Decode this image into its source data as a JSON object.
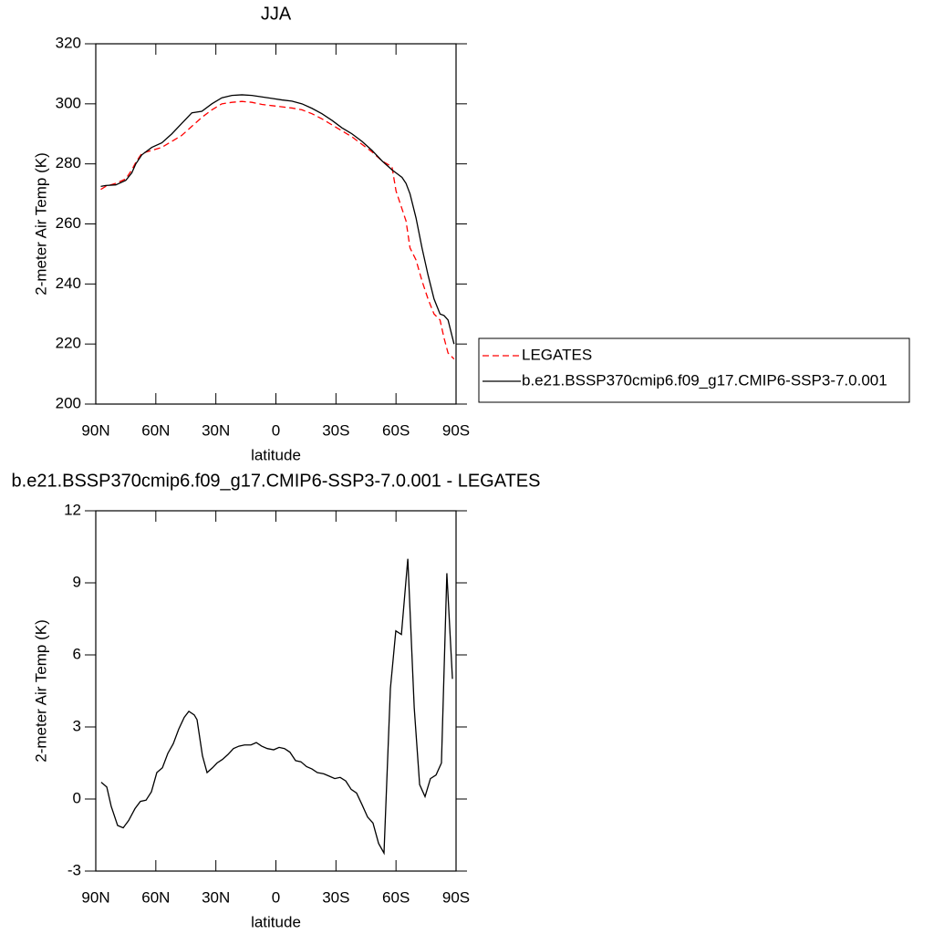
{
  "chart_data": [
    {
      "type": "line",
      "title": "JJA",
      "x_label": "latitude",
      "y_label": "2-meter Air Temp (K)",
      "x": [
        87.5,
        85,
        80,
        75,
        72,
        70,
        67,
        62,
        57,
        52,
        47,
        42,
        37,
        32,
        27,
        22,
        17,
        12,
        7,
        2,
        -3,
        -8,
        -13,
        -18,
        -23,
        -28,
        -33,
        -38,
        -43,
        -48,
        -53,
        -58,
        -60,
        -63,
        -65,
        -67,
        -70,
        -73,
        -76,
        -79,
        -82,
        -84,
        -86,
        -89
      ],
      "series": [
        {
          "name": "LEGATES",
          "color": "#ff0000",
          "dashed": true,
          "values": [
            271.5,
            272.5,
            273.5,
            275,
            278,
            280.5,
            283.5,
            284.5,
            285.5,
            287.5,
            289.5,
            292.5,
            295.5,
            298,
            300,
            300.5,
            300.8,
            300.5,
            299.8,
            299.4,
            299,
            298.6,
            298,
            296.7,
            295,
            293,
            291,
            289,
            286.5,
            284,
            281,
            279,
            271,
            265,
            261,
            252,
            248,
            241,
            235,
            230,
            228,
            222,
            217,
            215
          ]
        },
        {
          "name": "b.e21.BSSP370cmip6.f09_g17.CMIP6-SSP3-7.0.001",
          "color": "#000000",
          "dashed": false,
          "values": [
            272.5,
            272.8,
            273,
            274.5,
            277,
            280,
            283,
            285.5,
            287,
            290,
            293.5,
            297,
            297.5,
            300,
            302,
            302.8,
            303,
            302.8,
            302.3,
            301.8,
            301.3,
            300.9,
            300,
            298.5,
            296.7,
            294.5,
            292,
            290,
            287.5,
            284.5,
            281,
            278,
            277,
            275.5,
            273.5,
            270,
            262,
            252,
            243,
            235,
            230,
            229.5,
            228,
            220
          ]
        }
      ],
      "xlim": [
        90,
        -90
      ],
      "xticks": [
        {
          "value": 90,
          "label": "90N"
        },
        {
          "value": 60,
          "label": "60N"
        },
        {
          "value": 30,
          "label": "30N"
        },
        0,
        {
          "value": -30,
          "label": "30S"
        },
        {
          "value": -60,
          "label": "60S"
        },
        {
          "value": -90,
          "label": "90S"
        }
      ],
      "ylim": [
        200,
        320
      ],
      "yticks": [
        200,
        220,
        240,
        260,
        280,
        300,
        320
      ],
      "legend": "right"
    },
    {
      "type": "line",
      "title": "b.e21.BSSP370cmip6.f09_g17.CMIP6-SSP3-7.0.001 - LEGATES",
      "x_label": "latitude",
      "y_label": "2-meter Air Temp (K)",
      "x": [
        87.3,
        84.5,
        82.3,
        79.1,
        76.3,
        73.6,
        70.4,
        67.7,
        64.9,
        62.2,
        59.5,
        56.7,
        54.0,
        51.3,
        48.6,
        45.8,
        43.5,
        40.8,
        39.4,
        36.7,
        34.4,
        31.7,
        29.4,
        26.7,
        24.0,
        21.2,
        18.5,
        15.7,
        12.5,
        9.8,
        7.1,
        4.3,
        1.1,
        -1.6,
        -4.3,
        -7.0,
        -9.8,
        -12.5,
        -15.3,
        -18.0,
        -20.7,
        -23.9,
        -26.7,
        -29.4,
        -32.1,
        -34.9,
        -37.6,
        -40.3,
        -43.1,
        -45.8,
        -48.5,
        -51.3,
        -54.0,
        -57.2,
        -59.9,
        -62.7,
        -65.9,
        -69.1,
        -71.8,
        -74.5,
        -77.2,
        -80.0,
        -82.7,
        -85.4,
        -88.2
      ],
      "values": [
        0.7,
        0.5,
        -0.3,
        -1.1,
        -1.2,
        -0.9,
        -0.4,
        -0.1,
        -0.05,
        0.3,
        1.1,
        1.3,
        1.9,
        2.3,
        2.9,
        3.4,
        3.65,
        3.5,
        3.3,
        1.8,
        1.1,
        1.3,
        1.5,
        1.65,
        1.85,
        2.1,
        2.2,
        2.25,
        2.25,
        2.35,
        2.2,
        2.1,
        2.05,
        2.15,
        2.1,
        1.95,
        1.6,
        1.55,
        1.35,
        1.25,
        1.1,
        1.05,
        0.95,
        0.85,
        0.9,
        0.75,
        0.4,
        0.25,
        -0.25,
        -0.75,
        -1.0,
        -1.85,
        -2.25,
        4.6,
        7.0,
        6.85,
        10.0,
        3.8,
        0.6,
        0.1,
        0.85,
        1.0,
        1.5,
        9.4,
        5.0
      ],
      "color": "#000000",
      "xlim": [
        90,
        -90
      ],
      "xticks": [
        {
          "value": 90,
          "label": "90N"
        },
        {
          "value": 60,
          "label": "60N"
        },
        {
          "value": 30,
          "label": "30N"
        },
        0,
        {
          "value": -30,
          "label": "30S"
        },
        {
          "value": -60,
          "label": "60S"
        },
        {
          "value": -90,
          "label": "90S"
        }
      ],
      "ylim": [
        -3,
        12
      ],
      "yticks": [
        -3,
        0,
        3,
        6,
        9,
        12
      ]
    }
  ]
}
